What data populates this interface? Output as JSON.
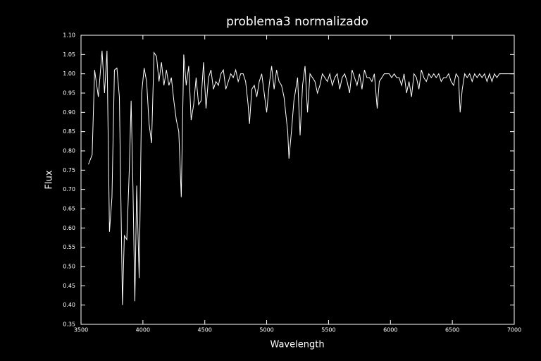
{
  "chart_data": {
    "type": "line",
    "title": "problema3  normalizado",
    "x_label": "Wavelength",
    "y_label": "Flux",
    "xlim": [
      3500,
      7000
    ],
    "ylim": [
      0.35,
      1.1
    ],
    "xticks": [
      3500,
      4000,
      4500,
      5000,
      5500,
      6000,
      6500,
      7000
    ],
    "yticks": [
      0.35,
      {
        "value": 0.4,
        "label": "0.40"
      },
      0.45,
      {
        "value": 0.5,
        "label": "0.50"
      },
      0.55,
      {
        "value": 0.6,
        "label": "0.60"
      },
      0.65,
      {
        "value": 0.7,
        "label": "0.70"
      },
      0.75,
      {
        "value": 0.8,
        "label": "0.80"
      },
      0.85,
      {
        "value": 0.9,
        "label": "0.90"
      },
      0.95,
      {
        "value": 1.0,
        "label": "1.00"
      },
      1.05,
      {
        "value": 1.1,
        "label": "1.10"
      }
    ],
    "color": "#ffffff",
    "x": [
      3560,
      3590,
      3610,
      3640,
      3670,
      3690,
      3710,
      3730,
      3750,
      3770,
      3790,
      3810,
      3835,
      3850,
      3870,
      3890,
      3905,
      3920,
      3935,
      3950,
      3970,
      3990,
      4010,
      4030,
      4050,
      4070,
      4090,
      4110,
      4130,
      4150,
      4170,
      4190,
      4210,
      4230,
      4250,
      4270,
      4290,
      4310,
      4330,
      4350,
      4370,
      4390,
      4410,
      4430,
      4450,
      4470,
      4490,
      4510,
      4530,
      4550,
      4570,
      4590,
      4610,
      4630,
      4650,
      4670,
      4690,
      4710,
      4730,
      4750,
      4770,
      4790,
      4810,
      4830,
      4850,
      4861,
      4880,
      4900,
      4920,
      4940,
      4960,
      4980,
      5000,
      5020,
      5040,
      5060,
      5080,
      5100,
      5120,
      5140,
      5170,
      5180,
      5200,
      5220,
      5250,
      5270,
      5290,
      5310,
      5330,
      5350,
      5370,
      5390,
      5410,
      5430,
      5450,
      5470,
      5490,
      5510,
      5530,
      5550,
      5570,
      5590,
      5610,
      5630,
      5650,
      5670,
      5690,
      5710,
      5730,
      5750,
      5770,
      5790,
      5810,
      5830,
      5850,
      5870,
      5893,
      5910,
      5930,
      5950,
      5970,
      5990,
      6010,
      6030,
      6050,
      6070,
      6090,
      6110,
      6130,
      6150,
      6170,
      6190,
      6210,
      6230,
      6250,
      6270,
      6290,
      6310,
      6330,
      6350,
      6370,
      6390,
      6410,
      6430,
      6450,
      6470,
      6490,
      6510,
      6530,
      6550,
      6563,
      6580,
      6600,
      6620,
      6640,
      6660,
      6680,
      6700,
      6720,
      6740,
      6760,
      6780,
      6800,
      6820,
      6840,
      6860,
      6880,
      6900,
      6920,
      6940,
      6960,
      6980,
      7000
    ],
    "values": [
      0.765,
      0.79,
      1.01,
      0.94,
      1.06,
      0.95,
      1.06,
      0.59,
      0.68,
      1.01,
      1.015,
      0.94,
      0.4,
      0.58,
      0.57,
      0.75,
      0.93,
      0.7,
      0.41,
      0.71,
      0.47,
      0.95,
      1.015,
      0.98,
      0.87,
      0.82,
      1.055,
      1.045,
      0.98,
      1.03,
      0.97,
      1.01,
      0.97,
      0.99,
      0.93,
      0.88,
      0.85,
      0.68,
      1.05,
      0.97,
      1.02,
      0.88,
      0.92,
      0.99,
      0.92,
      0.93,
      1.03,
      0.91,
      0.99,
      1.01,
      0.96,
      0.98,
      0.97,
      1.0,
      1.01,
      0.96,
      0.98,
      1.0,
      0.99,
      1.01,
      0.98,
      1.0,
      1.0,
      0.98,
      0.92,
      0.87,
      0.96,
      0.97,
      0.94,
      0.98,
      1.0,
      0.95,
      0.9,
      0.97,
      1.02,
      0.96,
      1.01,
      0.98,
      0.97,
      0.94,
      0.85,
      0.78,
      0.85,
      0.93,
      0.99,
      0.84,
      0.97,
      1.02,
      0.9,
      1.0,
      0.99,
      0.98,
      0.95,
      0.97,
      1.0,
      0.99,
      0.98,
      1.0,
      0.97,
      0.99,
      1.0,
      0.96,
      0.99,
      1.0,
      0.98,
      0.95,
      1.01,
      0.99,
      0.97,
      1.0,
      0.96,
      1.01,
      0.99,
      0.99,
      0.98,
      1.0,
      0.91,
      0.98,
      0.99,
      1.0,
      1.0,
      1.0,
      0.99,
      1.0,
      0.99,
      0.99,
      0.97,
      1.0,
      0.95,
      0.98,
      0.94,
      1.0,
      0.99,
      0.96,
      1.01,
      0.99,
      0.98,
      1.0,
      0.99,
      1.0,
      0.99,
      1.0,
      0.98,
      0.99,
      0.99,
      1.0,
      0.98,
      0.97,
      1.0,
      0.99,
      0.9,
      0.96,
      1.0,
      0.99,
      1.0,
      0.98,
      1.0,
      0.99,
      1.0,
      0.99,
      1.0,
      0.98,
      1.0,
      0.98,
      1.0,
      0.99,
      1.0,
      1.0,
      1.0,
      1.0,
      1.0,
      1.0,
      1.0
    ]
  }
}
